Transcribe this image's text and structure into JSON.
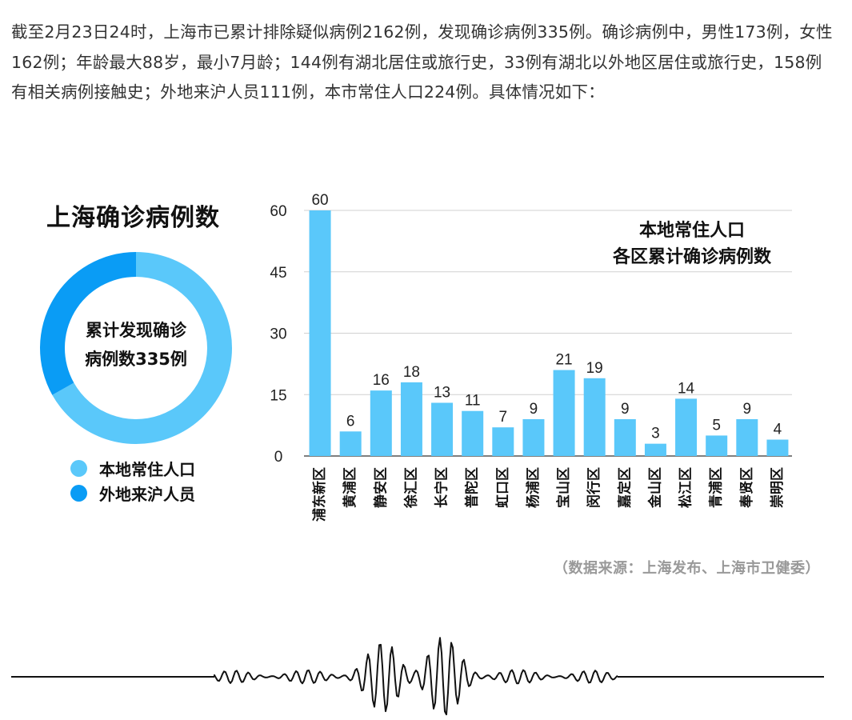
{
  "intro_text": "截至2月23日24时，上海市已累计排除疑似病例2162例，发现确诊病例335例。确诊病例中，男性173例，女性162例；年龄最大88岁，最小7月龄；144例有湖北居住或旅行史，33例有湖北以外地区居住或旅行史，158例有相关病例接触史；外地来沪人员111例，本市常住人口224例。具体情况如下：",
  "chart_data": [
    {
      "type": "pie",
      "style": "donut",
      "title": "上海确诊病例数",
      "center_label_line1": "累计发现确诊",
      "center_label_line2": "病例数335例",
      "categories": [
        "本地常住人口",
        "外地来沪人员"
      ],
      "values": [
        224,
        111
      ],
      "colors": [
        "#5ac8fa",
        "#0a9cf5"
      ],
      "legend_position": "bottom-left"
    },
    {
      "type": "bar",
      "title_line1": "本地常住人口",
      "title_line2": "各区累计确诊病例数",
      "categories": [
        "浦东新区",
        "黄浦区",
        "静安区",
        "徐汇区",
        "长宁区",
        "普陀区",
        "虹口区",
        "杨浦区",
        "宝山区",
        "闵行区",
        "嘉定区",
        "金山区",
        "松江区",
        "青浦区",
        "奉贤区",
        "崇明区"
      ],
      "values": [
        60,
        6,
        16,
        18,
        13,
        11,
        7,
        9,
        21,
        19,
        9,
        3,
        14,
        5,
        9,
        4
      ],
      "ylim": [
        0,
        60
      ],
      "yticks": [
        0,
        15,
        30,
        45,
        60
      ],
      "grid": true,
      "bar_color": "#5ac8fa",
      "xlabel": "",
      "ylabel": ""
    }
  ],
  "source_text": "（数据来源：上海发布、上海市卫健委）"
}
